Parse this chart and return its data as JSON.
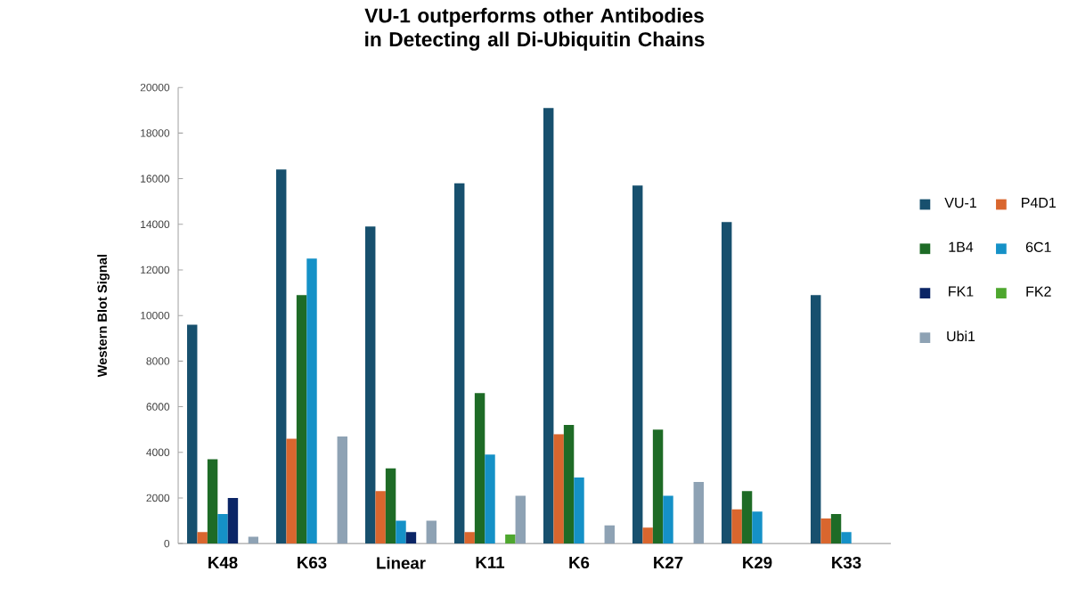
{
  "chart_data": {
    "type": "bar",
    "title": "VU-1 outperforms other Antibodies in Detecting all Di-Ubiquitin Chains",
    "ylabel": "Western Blot Signal",
    "categories": [
      "K48",
      "K63",
      "Linear",
      "K11",
      "K6",
      "K27",
      "K29",
      "K33"
    ],
    "series": [
      {
        "name": "VU-1",
        "color": "#17506e",
        "values": [
          9600,
          16400,
          13900,
          15800,
          19100,
          15700,
          14100,
          10900
        ]
      },
      {
        "name": "P4D1",
        "color": "#d9662e",
        "values": [
          500,
          4600,
          2300,
          500,
          4800,
          700,
          1500,
          1100
        ]
      },
      {
        "name": "1B4",
        "color": "#1e6b26",
        "values": [
          3700,
          10900,
          3300,
          6600,
          5200,
          5000,
          2300,
          1300
        ]
      },
      {
        "name": "6C1",
        "color": "#1591c7",
        "values": [
          1300,
          12500,
          1000,
          3900,
          2900,
          2100,
          1400,
          500
        ]
      },
      {
        "name": "FK1",
        "color": "#0b2566",
        "values": [
          2000,
          0,
          500,
          0,
          0,
          0,
          0,
          0
        ]
      },
      {
        "name": "FK2",
        "color": "#4ea72e",
        "values": [
          0,
          0,
          0,
          400,
          0,
          0,
          0,
          0
        ]
      },
      {
        "name": "Ubi1",
        "color": "#8ea2b4",
        "values": [
          300,
          4700,
          1000,
          2100,
          800,
          2700,
          0,
          0
        ]
      }
    ],
    "ylim": [
      0,
      20000
    ],
    "yticks": [
      0,
      2000,
      4000,
      6000,
      8000,
      10000,
      12000,
      14000,
      16000,
      18000,
      20000
    ],
    "legend": "right"
  }
}
